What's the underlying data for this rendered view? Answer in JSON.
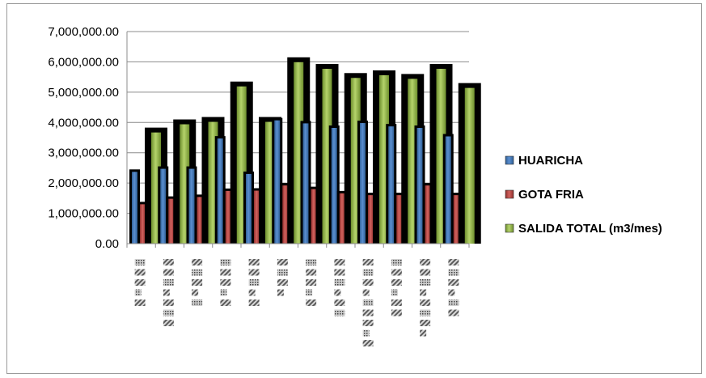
{
  "chart_data": {
    "type": "bar",
    "title": "",
    "xlabel": "",
    "ylabel": "",
    "ylim": [
      0,
      7000000
    ],
    "y_ticks": [
      "0.00",
      "1,000,000.00",
      "2,000,000.00",
      "3,000,000.00",
      "4,000,000.00",
      "5,000,000.00",
      "6,000,000.00",
      "7,000,000.00"
    ],
    "grid": true,
    "legend_position": "right",
    "categories": [
      "",
      "",
      "",
      "",
      "",
      "",
      "",
      "",
      "",
      "",
      "",
      ""
    ],
    "series": [
      {
        "name": "HUARICHA",
        "color": "#4f81bd",
        "values": [
          2450000,
          2550000,
          2550000,
          3550000,
          2380000,
          4150000,
          4050000,
          3900000,
          4060000,
          3950000,
          3900000,
          3620000
        ]
      },
      {
        "name": "GOTA FRIA",
        "color": "#c0504d",
        "values": [
          1380000,
          1560000,
          1620000,
          1820000,
          1830000,
          2000000,
          1880000,
          1740000,
          1680000,
          1680000,
          2000000,
          1680000
        ]
      },
      {
        "name": "SALIDA TOTAL (m3/mes)",
        "color": "#9bbb59",
        "values": [
          3830000,
          4100000,
          4180000,
          5350000,
          4180000,
          6150000,
          5930000,
          5630000,
          5720000,
          5600000,
          5930000,
          5300000
        ]
      }
    ]
  }
}
